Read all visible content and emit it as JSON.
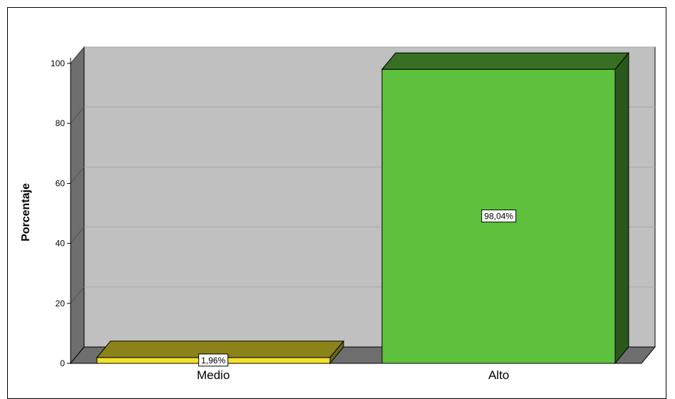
{
  "chart_data": {
    "type": "bar",
    "categories": [
      "Medio",
      "Alto"
    ],
    "values": [
      1.96,
      98.04
    ],
    "data_labels": [
      "1,96%",
      "98,04%"
    ],
    "colors": [
      "#f2e12a",
      "#5ec13d"
    ],
    "ylabel": "Porcentaje",
    "xlabel": "",
    "ylim": [
      0,
      100
    ],
    "yticks": [
      0,
      20,
      40,
      60,
      80,
      100
    ],
    "grid": true,
    "style": "3d"
  }
}
